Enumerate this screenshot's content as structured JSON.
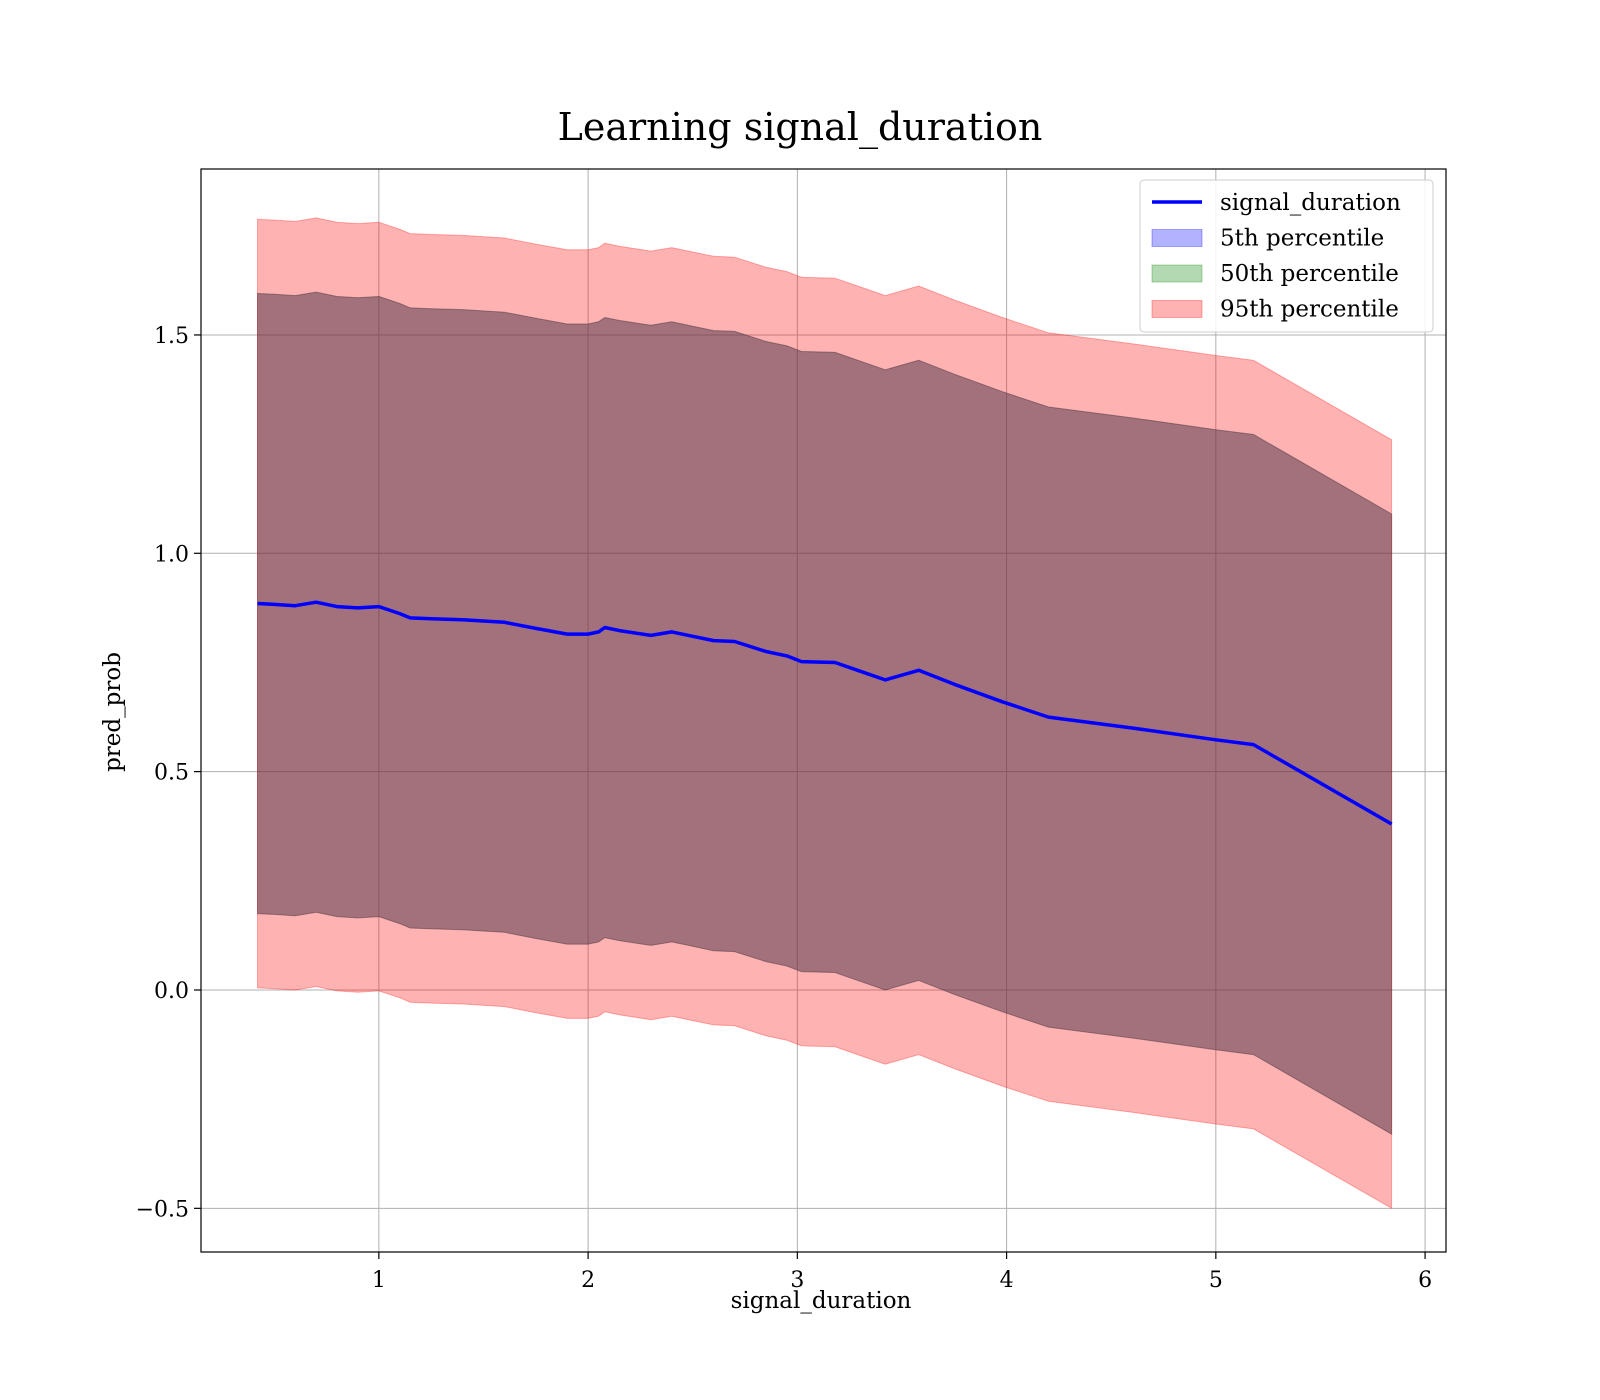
{
  "chart_data": {
    "type": "area",
    "title": "Learning signal_duration",
    "xlabel": "signal_duration",
    "ylabel": "pred_prob",
    "xlim": [
      0.15,
      6.1
    ],
    "ylim": [
      -0.6,
      1.88
    ],
    "xticks": [
      1,
      2,
      3,
      4,
      5,
      6
    ],
    "xtick_labels": [
      "1",
      "2",
      "3",
      "4",
      "5",
      "6"
    ],
    "yticks": [
      -0.5,
      0.0,
      0.5,
      1.0,
      1.5
    ],
    "ytick_labels": [
      "−0.5",
      "0.0",
      "0.5",
      "1.0",
      "1.5"
    ],
    "grid": true,
    "legend_position": "top-right",
    "x": [
      0.42,
      0.5,
      0.6,
      0.7,
      0.8,
      0.9,
      1.0,
      1.1,
      1.15,
      1.25,
      1.4,
      1.6,
      1.75,
      1.9,
      2.0,
      2.05,
      2.08,
      2.15,
      2.3,
      2.4,
      2.5,
      2.6,
      2.7,
      2.85,
      2.95,
      3.02,
      3.18,
      3.3,
      3.42,
      3.58,
      3.75,
      3.98,
      4.2,
      4.6,
      5.0,
      5.18,
      5.84
    ],
    "series": [
      {
        "name": "signal_duration",
        "kind": "line",
        "color": "#0000ff",
        "values": [
          0.885,
          0.883,
          0.88,
          0.888,
          0.878,
          0.875,
          0.878,
          0.862,
          0.852,
          0.85,
          0.848,
          0.842,
          0.828,
          0.815,
          0.815,
          0.82,
          0.83,
          0.823,
          0.812,
          0.82,
          0.81,
          0.8,
          0.798,
          0.775,
          0.765,
          0.752,
          0.75,
          0.73,
          0.71,
          0.732,
          0.7,
          0.66,
          0.625,
          0.6,
          0.573,
          0.562,
          0.38
        ]
      },
      {
        "name": "5th percentile",
        "kind": "band",
        "color": "#0000ff",
        "lower": [
          0.175,
          0.173,
          0.17,
          0.178,
          0.168,
          0.165,
          0.168,
          0.152,
          0.142,
          0.14,
          0.138,
          0.132,
          0.118,
          0.105,
          0.105,
          0.11,
          0.12,
          0.113,
          0.102,
          0.11,
          0.1,
          0.09,
          0.088,
          0.065,
          0.055,
          0.042,
          0.04,
          0.02,
          0.0,
          0.022,
          -0.01,
          -0.05,
          -0.085,
          -0.11,
          -0.137,
          -0.148,
          -0.33
        ],
        "upper": [
          1.595,
          1.593,
          1.59,
          1.598,
          1.588,
          1.585,
          1.588,
          1.572,
          1.562,
          1.56,
          1.558,
          1.552,
          1.538,
          1.525,
          1.525,
          1.53,
          1.54,
          1.533,
          1.522,
          1.53,
          1.52,
          1.51,
          1.508,
          1.485,
          1.475,
          1.462,
          1.46,
          1.44,
          1.42,
          1.442,
          1.41,
          1.37,
          1.335,
          1.31,
          1.283,
          1.272,
          1.09
        ]
      },
      {
        "name": "50th percentile",
        "kind": "band",
        "color": "#008000",
        "lower": [
          0.175,
          0.173,
          0.17,
          0.178,
          0.168,
          0.165,
          0.168,
          0.152,
          0.142,
          0.14,
          0.138,
          0.132,
          0.118,
          0.105,
          0.105,
          0.11,
          0.12,
          0.113,
          0.102,
          0.11,
          0.1,
          0.09,
          0.088,
          0.065,
          0.055,
          0.042,
          0.04,
          0.02,
          0.0,
          0.022,
          -0.01,
          -0.05,
          -0.085,
          -0.11,
          -0.137,
          -0.148,
          -0.33
        ],
        "upper": [
          1.595,
          1.593,
          1.59,
          1.598,
          1.588,
          1.585,
          1.588,
          1.572,
          1.562,
          1.56,
          1.558,
          1.552,
          1.538,
          1.525,
          1.525,
          1.53,
          1.54,
          1.533,
          1.522,
          1.53,
          1.52,
          1.51,
          1.508,
          1.485,
          1.475,
          1.462,
          1.46,
          1.44,
          1.42,
          1.442,
          1.41,
          1.37,
          1.335,
          1.31,
          1.283,
          1.272,
          1.09
        ]
      },
      {
        "name": "95th percentile",
        "kind": "band",
        "color": "#ff0000",
        "lower": [
          0.005,
          0.003,
          0.0,
          0.008,
          -0.002,
          -0.005,
          -0.002,
          -0.018,
          -0.028,
          -0.03,
          -0.032,
          -0.038,
          -0.052,
          -0.065,
          -0.065,
          -0.06,
          -0.05,
          -0.057,
          -0.068,
          -0.06,
          -0.07,
          -0.08,
          -0.082,
          -0.105,
          -0.115,
          -0.128,
          -0.13,
          -0.15,
          -0.17,
          -0.148,
          -0.18,
          -0.22,
          -0.255,
          -0.28,
          -0.307,
          -0.318,
          -0.5
        ],
        "upper": [
          1.765,
          1.763,
          1.76,
          1.768,
          1.758,
          1.755,
          1.758,
          1.742,
          1.732,
          1.73,
          1.728,
          1.722,
          1.708,
          1.695,
          1.695,
          1.7,
          1.71,
          1.703,
          1.692,
          1.7,
          1.69,
          1.68,
          1.678,
          1.655,
          1.645,
          1.632,
          1.63,
          1.61,
          1.59,
          1.612,
          1.58,
          1.54,
          1.505,
          1.48,
          1.453,
          1.442,
          1.26
        ]
      }
    ]
  }
}
